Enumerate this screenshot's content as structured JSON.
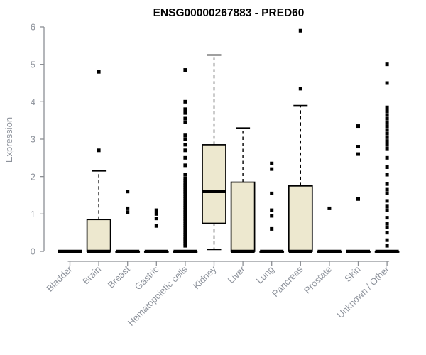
{
  "chart_data": {
    "type": "boxplot",
    "title": "ENSG00000267883 - PRED60",
    "ylabel": "Expression",
    "xlabel": "",
    "ylim": [
      0,
      6
    ],
    "yticks": [
      0,
      1,
      2,
      3,
      4,
      5,
      6
    ],
    "grid": false,
    "legend": "none",
    "colors": {
      "background": "#FFFFFF",
      "box_fill": "#EDE8CF",
      "box_border": "#000000",
      "median": "#000000",
      "whisker": "#000000",
      "outlier": "#000000",
      "axis": "#8C8F94",
      "tick_text": "#8D929B",
      "title_text": "#000000"
    },
    "categories": [
      "Bladder",
      "Brain",
      "Breast",
      "Gastric",
      "Hematopoietic cells",
      "Kidney",
      "Liver",
      "Lung",
      "Pancreas",
      "Prostate",
      "Skin",
      "Unknown / Other"
    ],
    "series": [
      {
        "name": "Bladder",
        "q1": 0,
        "median": 0,
        "q3": 0,
        "whisker_low": 0,
        "whisker_high": 0,
        "outliers": []
      },
      {
        "name": "Brain",
        "q1": 0,
        "median": 0,
        "q3": 0.85,
        "whisker_low": 0,
        "whisker_high": 2.15,
        "outliers": [
          2.7,
          4.8
        ]
      },
      {
        "name": "Breast",
        "q1": 0,
        "median": 0,
        "q3": 0,
        "whisker_low": 0,
        "whisker_high": 0,
        "outliers": [
          1.6,
          1.15,
          1.05
        ]
      },
      {
        "name": "Gastric",
        "q1": 0,
        "median": 0,
        "q3": 0,
        "whisker_low": 0,
        "whisker_high": 0,
        "outliers": [
          1.1,
          1.0,
          0.88,
          0.68
        ]
      },
      {
        "name": "Hematopoietic cells",
        "q1": 0,
        "median": 0,
        "q3": 0,
        "whisker_low": 0,
        "whisker_high": 0,
        "outliers": [
          4.85,
          4.0,
          3.8,
          3.7,
          3.55,
          3.45,
          3.1,
          3.0,
          2.85,
          2.7,
          2.5,
          2.3,
          2.05,
          1.95,
          1.89,
          1.83,
          1.77,
          1.71,
          1.65,
          1.59,
          1.53,
          1.47,
          1.41,
          1.35,
          1.29,
          1.23,
          1.17,
          1.11,
          1.05,
          0.99,
          0.93,
          0.87,
          0.81,
          0.75,
          0.69,
          0.63,
          0.57,
          0.51,
          0.45,
          0.39,
          0.33,
          0.27,
          0.21,
          0.15
        ]
      },
      {
        "name": "Kidney",
        "q1": 0.75,
        "median": 1.6,
        "q3": 2.85,
        "whisker_low": 0.05,
        "whisker_high": 5.25,
        "outliers": []
      },
      {
        "name": "Liver",
        "q1": 0,
        "median": 0,
        "q3": 1.85,
        "whisker_low": 0,
        "whisker_high": 3.3,
        "outliers": []
      },
      {
        "name": "Lung",
        "q1": 0,
        "median": 0,
        "q3": 0,
        "whisker_low": 0,
        "whisker_high": 0,
        "outliers": [
          2.35,
          2.2,
          1.55,
          1.1,
          0.95,
          0.6
        ]
      },
      {
        "name": "Pancreas",
        "q1": 0,
        "median": 0,
        "q3": 1.75,
        "whisker_low": 0,
        "whisker_high": 3.9,
        "outliers": [
          4.35,
          5.9
        ]
      },
      {
        "name": "Prostate",
        "q1": 0,
        "median": 0,
        "q3": 0,
        "whisker_low": 0,
        "whisker_high": 0,
        "outliers": [
          1.15
        ]
      },
      {
        "name": "Skin",
        "q1": 0,
        "median": 0,
        "q3": 0,
        "whisker_low": 0,
        "whisker_high": 0,
        "outliers": [
          3.35,
          2.8,
          2.6,
          1.4
        ]
      },
      {
        "name": "Unknown / Other",
        "q1": 0,
        "median": 0,
        "q3": 0,
        "whisker_low": 0,
        "whisker_high": 0,
        "outliers": [
          5.0,
          4.5,
          3.85,
          3.75,
          3.65,
          3.55,
          3.45,
          3.35,
          3.25,
          3.15,
          3.05,
          2.95,
          2.85,
          2.75,
          2.5,
          2.25,
          2.05,
          1.8,
          1.65,
          1.55,
          1.35,
          1.2,
          1.1,
          0.9,
          0.75,
          0.65,
          0.5,
          0.3,
          0.15
        ]
      }
    ]
  }
}
